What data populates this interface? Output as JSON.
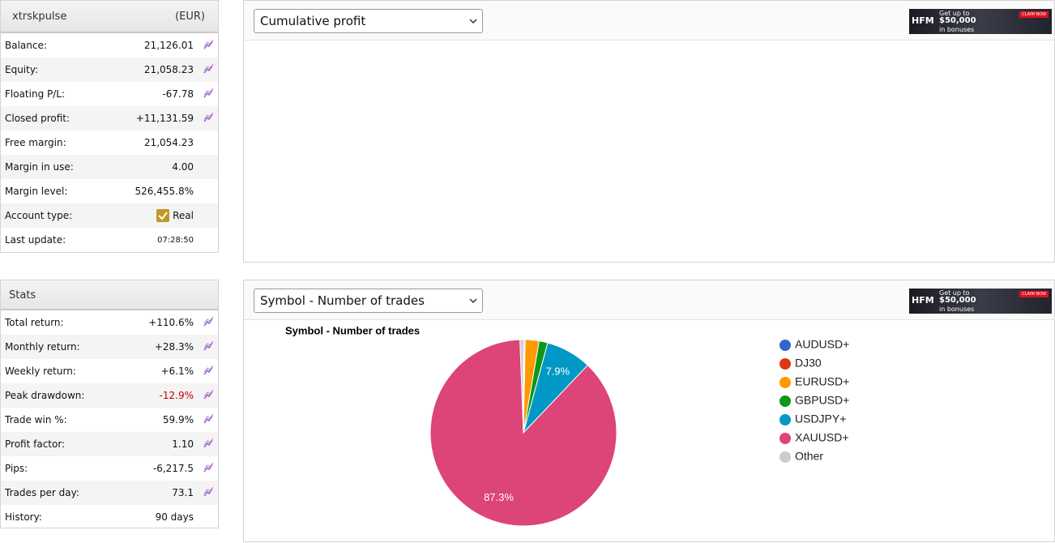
{
  "account": {
    "title": "xtrskpulse",
    "currency": "(EUR)",
    "rows": [
      {
        "label": "Balance:",
        "value": "21,126.01",
        "icon": true
      },
      {
        "label": "Equity:",
        "value": "21,058.23",
        "icon": true
      },
      {
        "label": "Floating P/L:",
        "value": "-67.78",
        "icon": true
      },
      {
        "label": "Closed profit:",
        "value": "+11,131.59",
        "icon": true
      },
      {
        "label": "Free margin:",
        "value": "21,054.23"
      },
      {
        "label": "Margin in use:",
        "value": "4.00"
      },
      {
        "label": "Margin level:",
        "value": "526,455.8%"
      },
      {
        "label": "Account type:",
        "value": "Real",
        "checkbox": true
      },
      {
        "label": "Last update:",
        "value": "07:28:50",
        "small": true
      }
    ]
  },
  "stats": {
    "title": "Stats",
    "rows": [
      {
        "label": "Total return:",
        "value": "+110.6%",
        "icon": true
      },
      {
        "label": "Monthly return:",
        "value": "+28.3%",
        "icon": true
      },
      {
        "label": "Weekly return:",
        "value": "+6.1%",
        "icon": true
      },
      {
        "label": "Peak drawdown:",
        "value": "-12.9%",
        "icon": true,
        "color": "#c00000"
      },
      {
        "label": "Trade win %:",
        "value": "59.9%",
        "icon": true
      },
      {
        "label": "Profit factor:",
        "value": "1.10",
        "icon": true
      },
      {
        "label": "Pips:",
        "value": "-6,217.5",
        "icon": true
      },
      {
        "label": "Trades per day:",
        "value": "73.1",
        "icon": true
      },
      {
        "label": "History:",
        "value": "90 days"
      }
    ]
  },
  "ad": {
    "brand": "HFM",
    "line1": "Get up to",
    "line2": "$50,000",
    "line3": "in bonuses",
    "button": "CLAIM NOW"
  },
  "panels": [
    {
      "select": "Cumulative profit"
    },
    {
      "select": "Symbol - Number of trades"
    }
  ],
  "chart_data": {
    "type": "pie",
    "title": "Symbol - Number of trades",
    "categories": [
      "AUDUSD+",
      "DJ30",
      "EURUSD+",
      "GBPUSD+",
      "USDJPY+",
      "XAUUSD+",
      "Other"
    ],
    "values": [
      0.2,
      0.1,
      2.4,
      1.5,
      7.9,
      87.3,
      0.6
    ],
    "value_labels": [
      null,
      null,
      null,
      null,
      "7.9%",
      "87.3%",
      null
    ],
    "colors": [
      "#3366cc",
      "#dc3912",
      "#ff9900",
      "#109618",
      "#0099c6",
      "#dd4477",
      "#cccccc"
    ],
    "legend": "right"
  }
}
